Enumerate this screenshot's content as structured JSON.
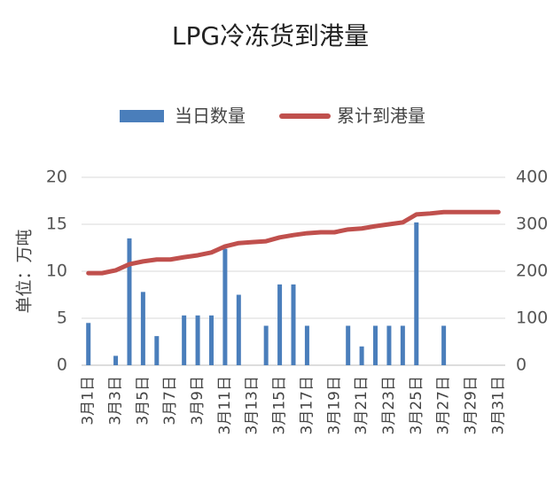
{
  "chart_data": {
    "type": "bar",
    "title": "LPG冷冻货到港量",
    "y_label": "单位：万吨",
    "categories": [
      "3月1日",
      null,
      "3月3日",
      null,
      "3月5日",
      null,
      "3月7日",
      null,
      "3月9日",
      null,
      "3月11日",
      null,
      "3月13日",
      null,
      "3月15日",
      null,
      "3月17日",
      null,
      "3月19日",
      null,
      "3月21日",
      null,
      "3月23日",
      null,
      "3月25日",
      null,
      "3月27日",
      null,
      "3月29日",
      null,
      "3月31日"
    ],
    "series": [
      {
        "name": "当日数量",
        "color": "#4a7ebb",
        "type": "bar",
        "values": [
          4.5,
          0,
          1.0,
          13.5,
          7.8,
          3.1,
          0,
          5.3,
          5.3,
          5.3,
          12.4,
          7.5,
          0,
          4.2,
          8.6,
          8.6,
          4.2,
          0,
          0,
          4.2,
          2.0,
          4.2,
          4.2,
          4.2,
          15.2,
          0,
          4.2,
          0,
          0,
          0,
          0
        ]
      },
      {
        "name": "累计到港量",
        "color": "#c0504d",
        "type": "line",
        "axis": "y2",
        "values": [
          196,
          196,
          202,
          215,
          221,
          225,
          225,
          230,
          234,
          240,
          253,
          260,
          262,
          264,
          272,
          277,
          281,
          283,
          283,
          289,
          291,
          296,
          300,
          304,
          321,
          323,
          326,
          326,
          326,
          326,
          326
        ]
      }
    ],
    "ylim": [
      0,
      20
    ],
    "yticks": [
      0,
      5,
      10,
      15,
      20
    ],
    "y2lim": [
      0,
      400
    ],
    "y2ticks": [
      0,
      100,
      200,
      300,
      400
    ],
    "grid": true,
    "legend": "top"
  }
}
